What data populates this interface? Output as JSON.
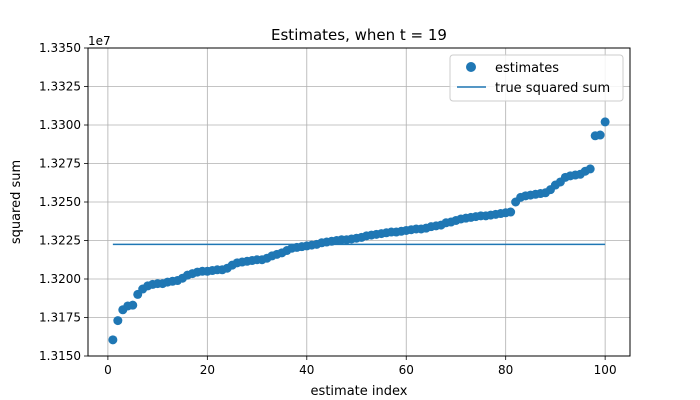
{
  "chart_data": {
    "type": "scatter",
    "title": "Estimates, when t = 19",
    "xlabel": "estimate index",
    "ylabel": "squared sum",
    "offset_label": "1e7",
    "xlim": [
      -4,
      105
    ],
    "ylim": [
      13150000,
      13350000
    ],
    "x_ticks": [
      0,
      20,
      40,
      60,
      80,
      100
    ],
    "x_tick_labels": [
      "0",
      "20",
      "40",
      "60",
      "80",
      "100"
    ],
    "y_ticks": [
      13150000,
      13175000,
      13200000,
      13225000,
      13250000,
      13275000,
      13300000,
      13325000,
      13350000
    ],
    "y_tick_labels": [
      "1.3150",
      "1.3175",
      "1.3200",
      "1.3225",
      "1.3250",
      "1.3275",
      "1.3300",
      "1.3325",
      "1.3350"
    ],
    "grid": true,
    "legend": {
      "position": "top-right",
      "entries": [
        "estimates",
        "true squared sum"
      ]
    },
    "series": [
      {
        "name": "estimates",
        "kind": "scatter",
        "color": "#1f77b4",
        "x": [
          1,
          2,
          3,
          4,
          5,
          6,
          7,
          8,
          9,
          10,
          11,
          12,
          13,
          14,
          15,
          16,
          17,
          18,
          19,
          20,
          21,
          22,
          23,
          24,
          25,
          26,
          27,
          28,
          29,
          30,
          31,
          32,
          33,
          34,
          35,
          36,
          37,
          38,
          39,
          40,
          41,
          42,
          43,
          44,
          45,
          46,
          47,
          48,
          49,
          50,
          51,
          52,
          53,
          54,
          55,
          56,
          57,
          58,
          59,
          60,
          61,
          62,
          63,
          64,
          65,
          66,
          67,
          68,
          69,
          70,
          71,
          72,
          73,
          74,
          75,
          76,
          77,
          78,
          79,
          80,
          81,
          82,
          83,
          84,
          85,
          86,
          87,
          88,
          89,
          90,
          91,
          92,
          93,
          94,
          95,
          96,
          97,
          98,
          99,
          100
        ],
        "y": [
          13160500,
          13173000,
          13180000,
          13182500,
          13183000,
          13190000,
          13193500,
          13195500,
          13196500,
          13197000,
          13197000,
          13198000,
          13198500,
          13199000,
          13200500,
          13202500,
          13203500,
          13204500,
          13205000,
          13205000,
          13205500,
          13206000,
          13206000,
          13207000,
          13209000,
          13210500,
          13211000,
          13211500,
          13212000,
          13212500,
          13212500,
          13213500,
          13215000,
          13216000,
          13217000,
          13218500,
          13220000,
          13220500,
          13221000,
          13221500,
          13222000,
          13222500,
          13223500,
          13224000,
          13224500,
          13225000,
          13225500,
          13225500,
          13226000,
          13226500,
          13227000,
          13228000,
          13228500,
          13229000,
          13229500,
          13230000,
          13230500,
          13230500,
          13231000,
          13231500,
          13232000,
          13232500,
          13232500,
          13233000,
          13234000,
          13234500,
          13235000,
          13236500,
          13237000,
          13238000,
          13239000,
          13239500,
          13240000,
          13240500,
          13241000,
          13241000,
          13241500,
          13242000,
          13242500,
          13243000,
          13243500,
          13250000,
          13253000,
          13254000,
          13254500,
          13255000,
          13255500,
          13256000,
          13258000,
          13261000,
          13263000,
          13266000,
          13267000,
          13267500,
          13268000,
          13270000,
          13271500,
          13293000,
          13293500,
          13302000
        ]
      },
      {
        "name": "true squared sum",
        "kind": "line",
        "color": "#1f77b4",
        "x": [
          1,
          100
        ],
        "y": [
          13222500,
          13222500
        ]
      }
    ]
  }
}
